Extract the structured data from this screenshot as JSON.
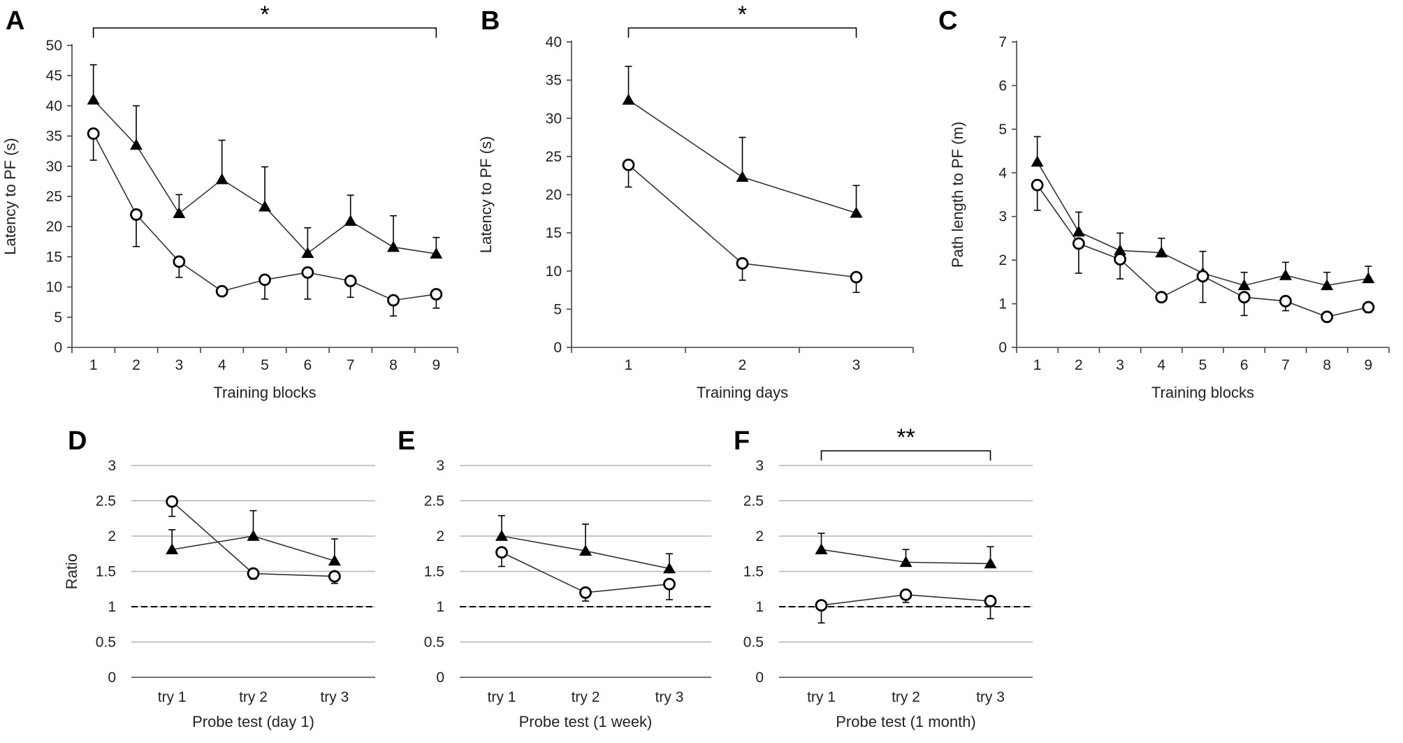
{
  "chart_data": [
    {
      "panel": "A",
      "type": "line",
      "ylabel": "Latency to PF (s)",
      "xlabel": "Training blocks",
      "categories": [
        "1",
        "2",
        "3",
        "4",
        "5",
        "6",
        "7",
        "8",
        "9"
      ],
      "ylim": [
        0,
        50
      ],
      "yticks": [
        "0",
        "5",
        "10",
        "15",
        "20",
        "25",
        "30",
        "35",
        "40",
        "45",
        "50"
      ],
      "grid": false,
      "significance": {
        "label": "*",
        "from": 0,
        "to": 8
      },
      "series": [
        {
          "name": "triangle",
          "marker": "triangle",
          "values": [
            41.0,
            33.5,
            22.2,
            27.8,
            23.3,
            15.6,
            20.9,
            16.6,
            15.5
          ],
          "errors": [
            5.8,
            6.5,
            3.1,
            6.5,
            6.6,
            4.2,
            4.3,
            5.2,
            2.7
          ]
        },
        {
          "name": "circle",
          "marker": "circle",
          "values": [
            35.4,
            22.0,
            14.2,
            9.3,
            11.2,
            12.4,
            11.0,
            7.8,
            8.8
          ],
          "errors": [
            4.4,
            5.3,
            2.6,
            0,
            3.2,
            4.4,
            2.7,
            2.6,
            2.3
          ]
        }
      ]
    },
    {
      "panel": "B",
      "type": "line",
      "ylabel": "Latency to PF (s)",
      "xlabel": "Training days",
      "categories": [
        "1",
        "2",
        "3"
      ],
      "ylim": [
        0,
        40
      ],
      "yticks": [
        "0",
        "5",
        "10",
        "15",
        "20",
        "25",
        "30",
        "35",
        "40"
      ],
      "grid": false,
      "significance": {
        "label": "*",
        "from": 0,
        "to": 2
      },
      "series": [
        {
          "name": "triangle",
          "marker": "triangle",
          "values": [
            32.4,
            22.3,
            17.6
          ],
          "errors": [
            4.4,
            5.2,
            3.6
          ]
        },
        {
          "name": "circle",
          "marker": "circle",
          "values": [
            23.9,
            11.0,
            9.2
          ],
          "errors": [
            2.9,
            2.2,
            2.0
          ]
        }
      ]
    },
    {
      "panel": "C",
      "type": "line",
      "ylabel": "Path length to PF (m)",
      "xlabel": "Training blocks",
      "categories": [
        "1",
        "2",
        "3",
        "4",
        "5",
        "6",
        "7",
        "8",
        "9"
      ],
      "ylim": [
        0,
        7
      ],
      "yticks": [
        "0",
        "1",
        "2",
        "3",
        "4",
        "5",
        "6",
        "7"
      ],
      "grid": false,
      "significance": null,
      "series": [
        {
          "name": "triangle",
          "marker": "triangle",
          "values": [
            4.25,
            2.65,
            2.22,
            2.17,
            1.7,
            1.42,
            1.65,
            1.42,
            1.58
          ],
          "errors": [
            0.58,
            0.45,
            0.4,
            0.33,
            0.5,
            0.3,
            0.3,
            0.3,
            0.28
          ]
        },
        {
          "name": "circle",
          "marker": "circle",
          "values": [
            3.72,
            2.38,
            2.02,
            1.15,
            1.63,
            1.15,
            1.06,
            0.7,
            0.92
          ],
          "errors": [
            0.58,
            0.68,
            0.45,
            0,
            0.6,
            0.42,
            0.22,
            0,
            0.12
          ]
        }
      ]
    },
    {
      "panel": "D",
      "type": "line",
      "ylabel": "Ratio",
      "xlabel": "Probe test (day 1)",
      "categories": [
        "try 1",
        "try 2",
        "try 3"
      ],
      "ylim": [
        0,
        3
      ],
      "yticks": [
        "0",
        "0.5",
        "1",
        "1.5",
        "2",
        "2.5",
        "3"
      ],
      "grid": true,
      "reference_line": 1,
      "significance": null,
      "series": [
        {
          "name": "triangle",
          "marker": "triangle",
          "values": [
            1.81,
            2.0,
            1.65
          ],
          "errors": [
            0.28,
            0.36,
            0.31
          ]
        },
        {
          "name": "circle",
          "marker": "circle",
          "values": [
            2.49,
            1.47,
            1.43
          ],
          "errors": [
            0.21,
            0.08,
            0.1
          ]
        }
      ]
    },
    {
      "panel": "E",
      "type": "line",
      "ylabel": "",
      "xlabel": "Probe test (1 week)",
      "categories": [
        "try 1",
        "try 2",
        "try 3"
      ],
      "ylim": [
        0,
        3
      ],
      "yticks": [
        "0",
        "0.5",
        "1",
        "1.5",
        "2",
        "2.5",
        "3"
      ],
      "grid": true,
      "reference_line": 1,
      "significance": null,
      "series": [
        {
          "name": "triangle",
          "marker": "triangle",
          "values": [
            2.0,
            1.79,
            1.54
          ],
          "errors": [
            0.29,
            0.38,
            0.21
          ]
        },
        {
          "name": "circle",
          "marker": "circle",
          "values": [
            1.77,
            1.2,
            1.32
          ],
          "errors": [
            0.2,
            0.12,
            0.22
          ]
        }
      ]
    },
    {
      "panel": "F",
      "type": "line",
      "ylabel": "",
      "xlabel": "Probe test (1 month)",
      "categories": [
        "try 1",
        "try 2",
        "try 3"
      ],
      "ylim": [
        0,
        3
      ],
      "yticks": [
        "0",
        "0.5",
        "1",
        "1.5",
        "2",
        "2.5",
        "3"
      ],
      "grid": true,
      "reference_line": 1,
      "significance": {
        "label": "**",
        "from": 0,
        "to": 2
      },
      "series": [
        {
          "name": "triangle",
          "marker": "triangle",
          "values": [
            1.81,
            1.63,
            1.61
          ],
          "errors": [
            0.23,
            0.18,
            0.24
          ]
        },
        {
          "name": "circle",
          "marker": "circle",
          "values": [
            1.02,
            1.17,
            1.08
          ],
          "errors": [
            0.25,
            0.11,
            0.25
          ]
        }
      ]
    }
  ]
}
